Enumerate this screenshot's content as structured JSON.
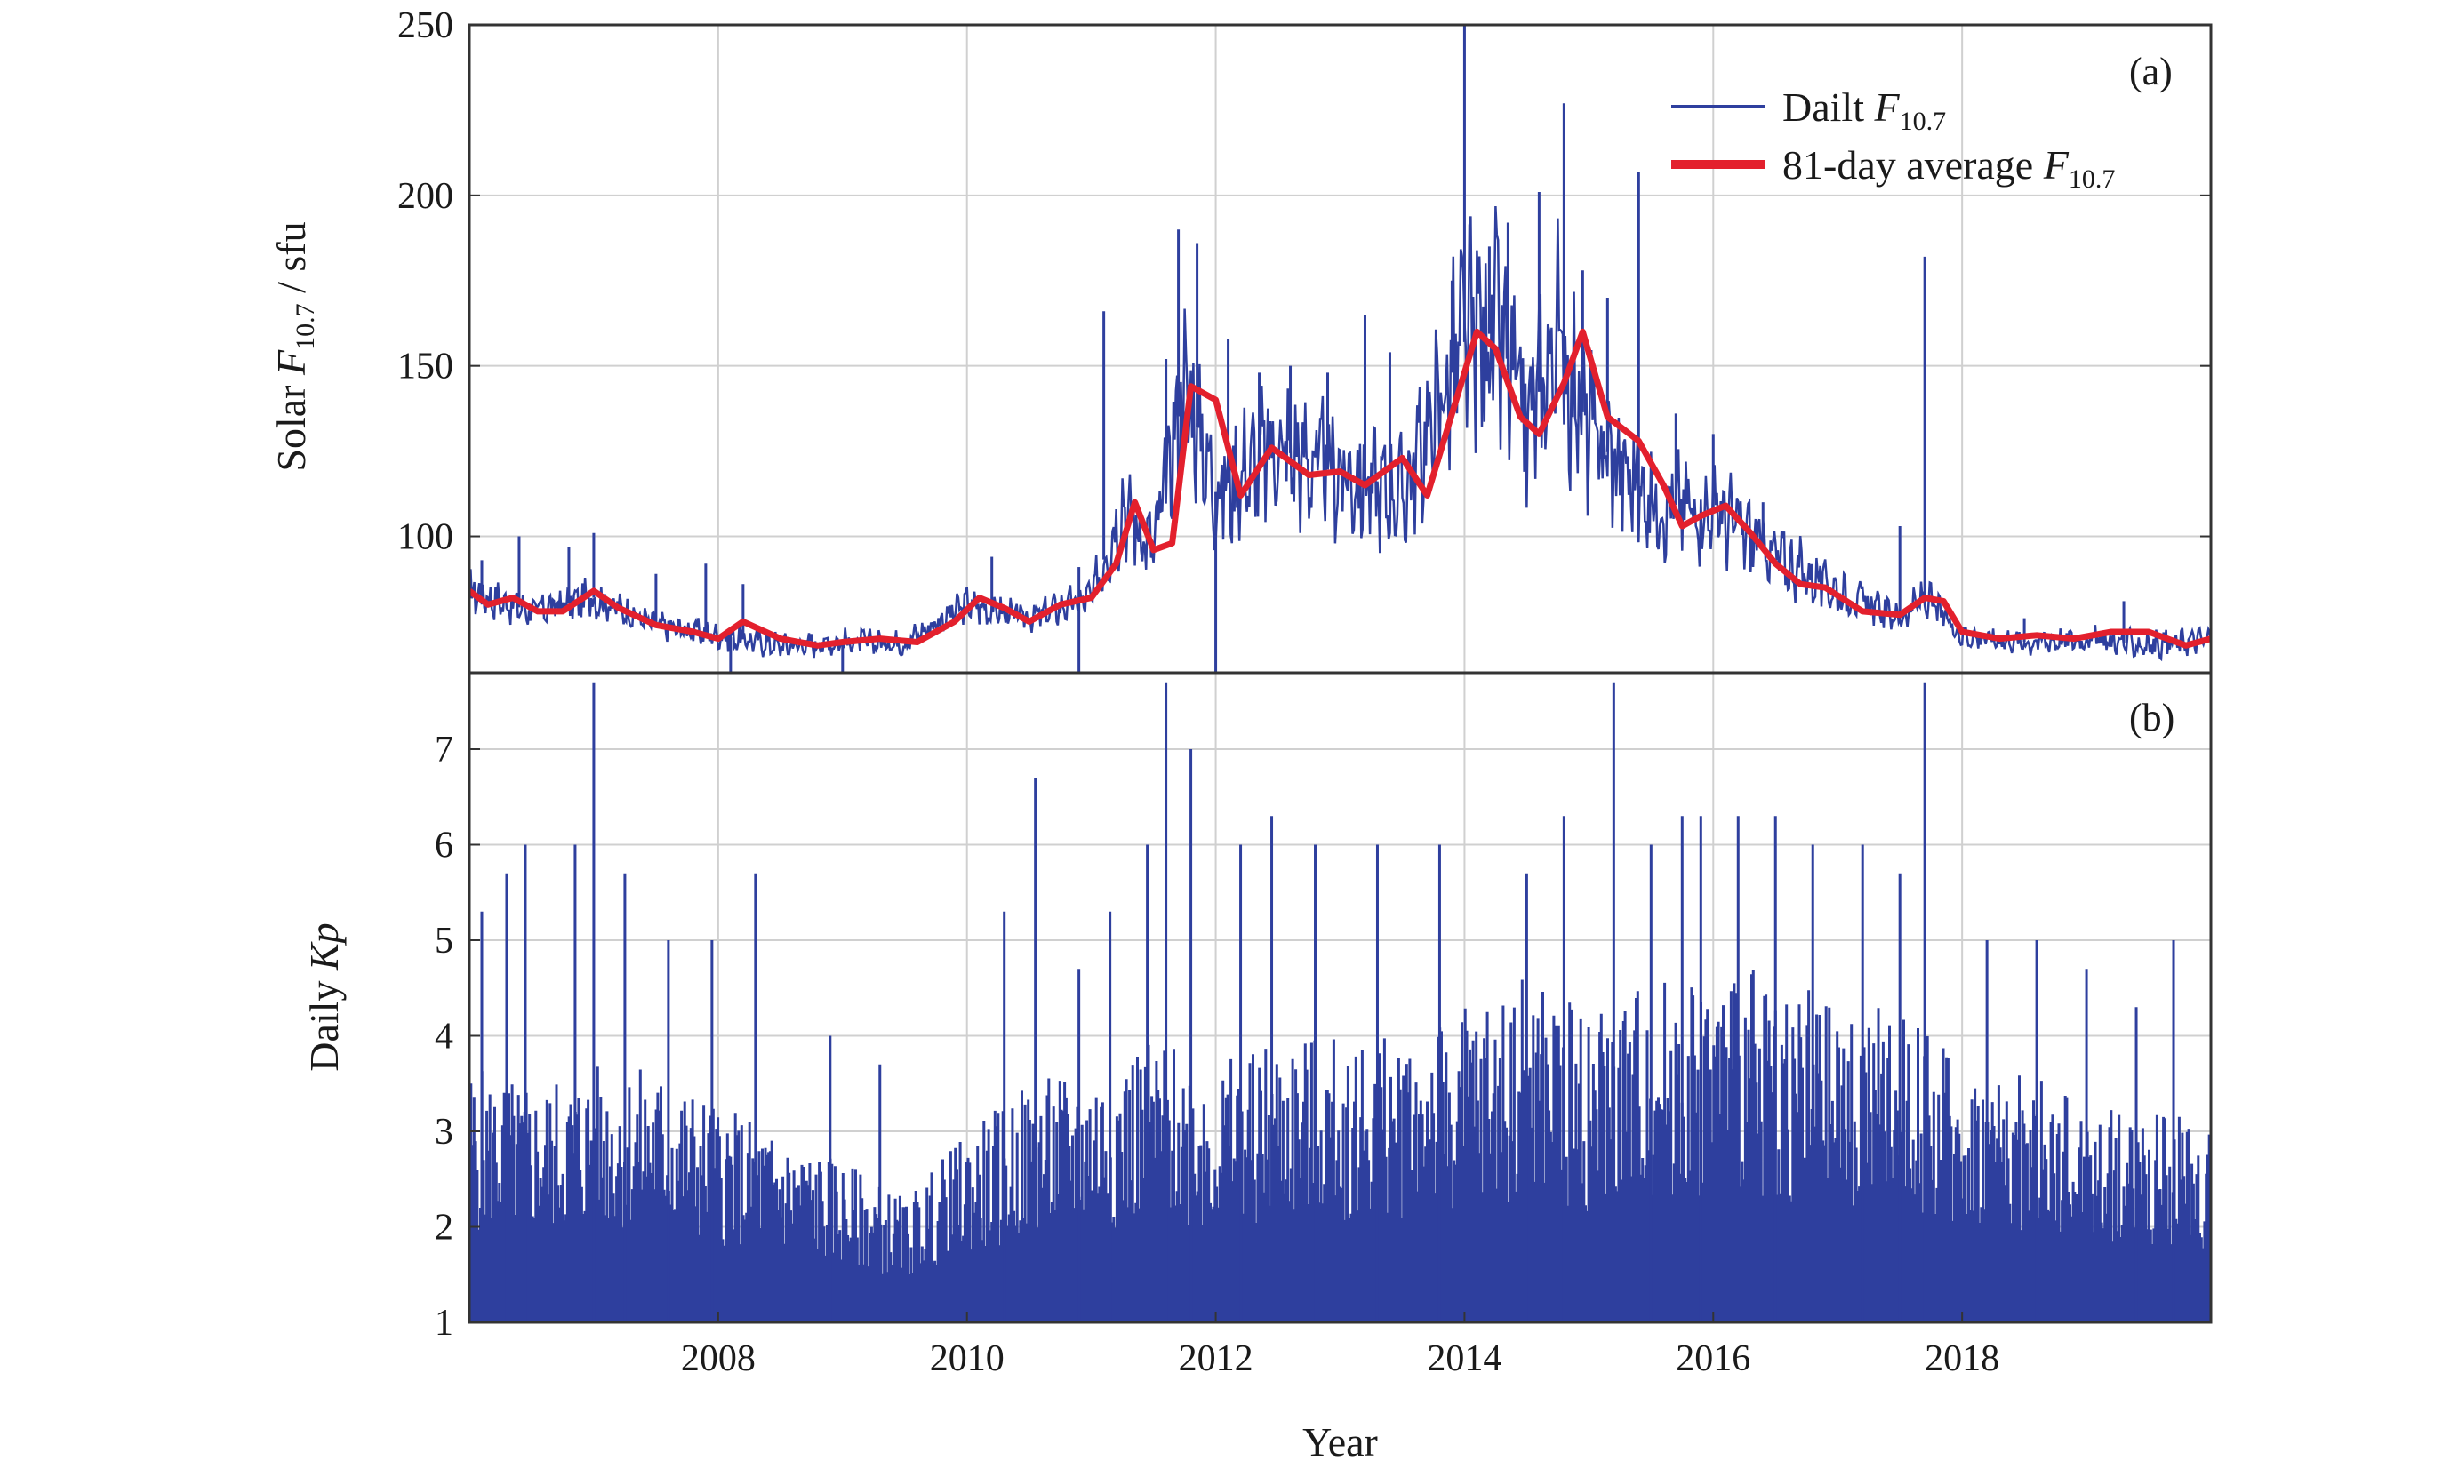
{
  "chart_data": [
    {
      "type": "line",
      "panel_label": "(a)",
      "ylabel": {
        "prefix": "Solar ",
        "var": "F",
        "sub": "10.7",
        "suffix": " / sfu"
      },
      "xlim": [
        2006.0,
        2020.0
      ],
      "ylim": [
        60,
        250
      ],
      "x_ticks": [
        2008,
        2010,
        2012,
        2014,
        2016,
        2018
      ],
      "y_ticks": [
        100,
        150,
        200,
        250
      ],
      "grid": true,
      "legend_position": "top-right",
      "series": [
        {
          "name": "Dailt F10.7",
          "legend": {
            "prefix": "Dailt ",
            "var": "F",
            "sub": "10.7"
          },
          "color": "#2e3f9e",
          "x": [
            2006.0,
            2006.5,
            2007.0,
            2007.5,
            2008.0,
            2008.5,
            2009.0,
            2009.5,
            2010.0,
            2010.5,
            2011.0,
            2011.25,
            2011.5,
            2011.75,
            2012.0,
            2012.5,
            2013.0,
            2013.5,
            2014.0,
            2014.25,
            2014.5,
            2014.75,
            2015.0,
            2015.5,
            2016.0,
            2016.5,
            2017.0,
            2017.5,
            2017.7,
            2018.0,
            2018.5,
            2019.0,
            2019.5,
            2020.0
          ],
          "y": [
            84,
            78,
            82,
            74,
            71,
            68,
            69,
            69,
            80,
            76,
            82,
            110,
            96,
            145,
            113,
            126,
            118,
            112,
            157,
            160,
            132,
            158,
            131,
            110,
            108,
            94,
            84,
            76,
            82,
            71,
            69,
            70,
            68,
            70
          ],
          "spikes": [
            {
              "x": 2006.1,
              "y": 93
            },
            {
              "x": 2006.4,
              "y": 100
            },
            {
              "x": 2006.8,
              "y": 97
            },
            {
              "x": 2007.0,
              "y": 101
            },
            {
              "x": 2007.5,
              "y": 89
            },
            {
              "x": 2007.9,
              "y": 92
            },
            {
              "x": 2008.2,
              "y": 86
            },
            {
              "x": 2010.2,
              "y": 94
            },
            {
              "x": 2010.9,
              "y": 91
            },
            {
              "x": 2011.1,
              "y": 166
            },
            {
              "x": 2011.6,
              "y": 152
            },
            {
              "x": 2011.7,
              "y": 190
            },
            {
              "x": 2011.85,
              "y": 186
            },
            {
              "x": 2012.1,
              "y": 158
            },
            {
              "x": 2012.35,
              "y": 148
            },
            {
              "x": 2012.6,
              "y": 150
            },
            {
              "x": 2012.9,
              "y": 148
            },
            {
              "x": 2013.2,
              "y": 165
            },
            {
              "x": 2013.4,
              "y": 154
            },
            {
              "x": 2013.9,
              "y": 175
            },
            {
              "x": 2014.0,
              "y": 250
            },
            {
              "x": 2014.2,
              "y": 185
            },
            {
              "x": 2014.35,
              "y": 192
            },
            {
              "x": 2014.6,
              "y": 201
            },
            {
              "x": 2014.8,
              "y": 227
            },
            {
              "x": 2014.95,
              "y": 178
            },
            {
              "x": 2015.15,
              "y": 170
            },
            {
              "x": 2015.4,
              "y": 207
            },
            {
              "x": 2015.7,
              "y": 136
            },
            {
              "x": 2016.0,
              "y": 130
            },
            {
              "x": 2016.4,
              "y": 110
            },
            {
              "x": 2017.5,
              "y": 103
            },
            {
              "x": 2017.7,
              "y": 182
            },
            {
              "x": 2018.5,
              "y": 76
            },
            {
              "x": 2019.3,
              "y": 81
            }
          ],
          "dropouts": [
            2008.1,
            2009.0,
            2010.9,
            2012.0
          ]
        },
        {
          "name": "81-day average F10.7",
          "legend": {
            "prefix": "81-day average ",
            "var": "F",
            "sub": "10.7"
          },
          "color": "#e3202d",
          "x": [
            2006.0,
            2006.15,
            2006.35,
            2006.55,
            2006.75,
            2007.0,
            2007.2,
            2007.5,
            2007.8,
            2008.0,
            2008.2,
            2008.5,
            2008.8,
            2009.0,
            2009.3,
            2009.6,
            2009.9,
            2010.1,
            2010.3,
            2010.5,
            2010.75,
            2011.0,
            2011.2,
            2011.35,
            2011.5,
            2011.65,
            2011.8,
            2012.0,
            2012.2,
            2012.45,
            2012.75,
            2013.0,
            2013.2,
            2013.5,
            2013.7,
            2013.9,
            2014.1,
            2014.25,
            2014.45,
            2014.6,
            2014.8,
            2014.95,
            2015.15,
            2015.4,
            2015.6,
            2015.75,
            2015.9,
            2016.1,
            2016.3,
            2016.5,
            2016.7,
            2016.9,
            2017.2,
            2017.5,
            2017.7,
            2017.85,
            2018.0,
            2018.3,
            2018.6,
            2018.9,
            2019.2,
            2019.5,
            2019.8,
            2020.0
          ],
          "y": [
            84,
            80,
            82,
            78,
            78,
            84,
            79,
            74,
            72,
            70,
            75,
            70,
            68,
            69,
            70,
            69,
            75,
            82,
            79,
            75,
            80,
            82,
            92,
            110,
            96,
            98,
            144,
            140,
            112,
            126,
            118,
            119,
            115,
            123,
            112,
            136,
            160,
            155,
            135,
            130,
            145,
            160,
            135,
            128,
            115,
            103,
            106,
            109,
            101,
            92,
            86,
            85,
            78,
            77,
            82,
            81,
            72,
            70,
            71,
            70,
            72,
            72,
            68,
            70
          ]
        }
      ]
    },
    {
      "type": "line",
      "panel_label": "(b)",
      "ylabel": {
        "prefix": "Daily ",
        "var": "Kp"
      },
      "xlabel": "Year",
      "xlim": [
        2006.0,
        2020.0
      ],
      "ylim": [
        1,
        7.8
      ],
      "x_ticks": [
        2008,
        2010,
        2012,
        2014,
        2016,
        2018
      ],
      "y_ticks": [
        1,
        2,
        3,
        4,
        5,
        6,
        7
      ],
      "grid": true,
      "series": [
        {
          "name": "Daily Kp",
          "color": "#2e3f9e",
          "envelope_x": [
            2006.0,
            2006.5,
            2007.0,
            2007.5,
            2008.0,
            2008.5,
            2009.0,
            2009.5,
            2010.0,
            2010.5,
            2011.0,
            2011.5,
            2012.0,
            2012.5,
            2013.0,
            2013.5,
            2014.0,
            2014.5,
            2015.0,
            2015.5,
            2016.0,
            2016.5,
            2017.0,
            2017.5,
            2018.0,
            2018.5,
            2019.0,
            2019.5,
            2020.0
          ],
          "envelope_y": [
            3.7,
            3.5,
            3.7,
            3.7,
            3.3,
            3.0,
            2.7,
            2.3,
            3.0,
            3.5,
            3.7,
            4.0,
            3.7,
            4.0,
            4.0,
            4.0,
            4.3,
            4.7,
            4.3,
            4.7,
            4.7,
            4.7,
            4.3,
            4.3,
            3.7,
            3.7,
            3.3,
            3.3,
            3.0
          ],
          "peaks": [
            {
              "x": 2006.1,
              "y": 5.3
            },
            {
              "x": 2006.3,
              "y": 5.7
            },
            {
              "x": 2006.45,
              "y": 6.0
            },
            {
              "x": 2006.85,
              "y": 6.0
            },
            {
              "x": 2007.0,
              "y": 7.7
            },
            {
              "x": 2007.25,
              "y": 5.7
            },
            {
              "x": 2007.6,
              "y": 5.0
            },
            {
              "x": 2007.95,
              "y": 5.0
            },
            {
              "x": 2008.3,
              "y": 5.7
            },
            {
              "x": 2008.9,
              "y": 4.0
            },
            {
              "x": 2009.3,
              "y": 3.7
            },
            {
              "x": 2010.3,
              "y": 5.3
            },
            {
              "x": 2010.55,
              "y": 6.7
            },
            {
              "x": 2010.9,
              "y": 4.7
            },
            {
              "x": 2011.15,
              "y": 5.3
            },
            {
              "x": 2011.45,
              "y": 6.0
            },
            {
              "x": 2011.6,
              "y": 7.7
            },
            {
              "x": 2011.8,
              "y": 7.0
            },
            {
              "x": 2012.2,
              "y": 6.0
            },
            {
              "x": 2012.45,
              "y": 6.3
            },
            {
              "x": 2012.8,
              "y": 6.0
            },
            {
              "x": 2013.3,
              "y": 6.0
            },
            {
              "x": 2013.8,
              "y": 6.0
            },
            {
              "x": 2014.5,
              "y": 5.7
            },
            {
              "x": 2014.8,
              "y": 6.3
            },
            {
              "x": 2015.2,
              "y": 7.7
            },
            {
              "x": 2015.5,
              "y": 6.0
            },
            {
              "x": 2015.75,
              "y": 6.3
            },
            {
              "x": 2015.9,
              "y": 6.3
            },
            {
              "x": 2016.2,
              "y": 6.3
            },
            {
              "x": 2016.5,
              "y": 6.3
            },
            {
              "x": 2016.8,
              "y": 6.0
            },
            {
              "x": 2017.2,
              "y": 6.0
            },
            {
              "x": 2017.5,
              "y": 5.7
            },
            {
              "x": 2017.7,
              "y": 7.7
            },
            {
              "x": 2018.2,
              "y": 5.0
            },
            {
              "x": 2018.6,
              "y": 5.0
            },
            {
              "x": 2019.0,
              "y": 4.7
            },
            {
              "x": 2019.4,
              "y": 4.3
            },
            {
              "x": 2019.7,
              "y": 5.0
            }
          ]
        }
      ]
    }
  ]
}
